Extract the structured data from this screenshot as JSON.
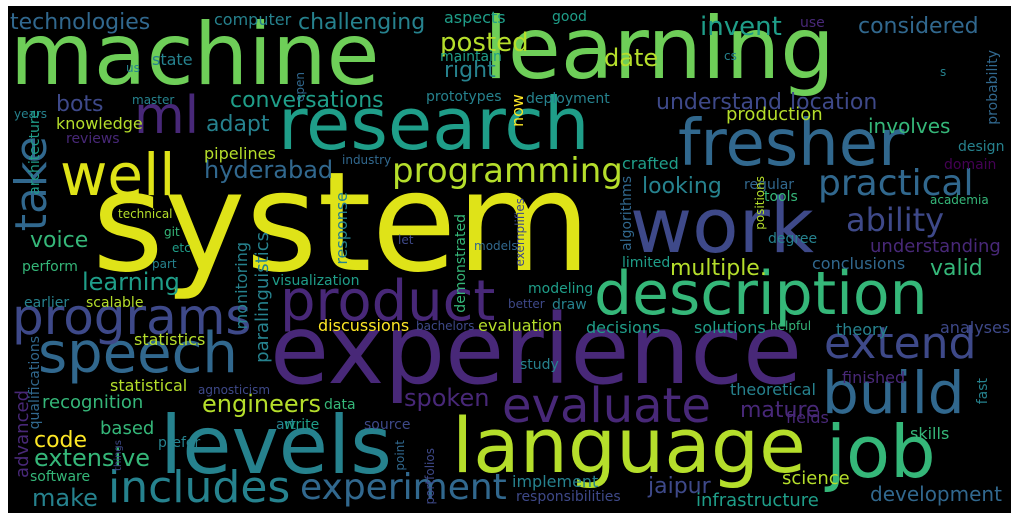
{
  "colors": {
    "background": "#000000",
    "palette": [
      "#fde725",
      "#b5de2b",
      "#6ece58",
      "#35b779",
      "#1f9e89",
      "#26828e",
      "#31688e",
      "#3e4989",
      "#482878",
      "#440154"
    ]
  },
  "words": [
    {
      "text": "system",
      "color": "#dfe318"
    },
    {
      "text": "machine",
      "color": "#6ece58"
    },
    {
      "text": "learning",
      "color": "#6ece58"
    },
    {
      "text": "experience",
      "color": "#482878"
    },
    {
      "text": "research",
      "color": "#1f9e89"
    },
    {
      "text": "work",
      "color": "#3e4989"
    },
    {
      "text": "language",
      "color": "#b5de2b"
    },
    {
      "text": "levels",
      "color": "#26828e"
    },
    {
      "text": "job",
      "color": "#35b779"
    },
    {
      "text": "description",
      "color": "#35b779"
    },
    {
      "text": "fresher",
      "color": "#31688e"
    },
    {
      "text": "product",
      "color": "#482878"
    },
    {
      "text": "speech",
      "color": "#31688e"
    },
    {
      "text": "build",
      "color": "#31688e"
    },
    {
      "text": "evaluate",
      "color": "#482878"
    },
    {
      "text": "programs",
      "color": "#3e4989"
    },
    {
      "text": "includes",
      "color": "#26828e"
    },
    {
      "text": "well",
      "color": "#dfe318"
    },
    {
      "text": "ml",
      "color": "#482878"
    },
    {
      "text": "take",
      "color": "#31688e"
    },
    {
      "text": "extend",
      "color": "#3e4989"
    },
    {
      "text": "experiment",
      "color": "#31688e"
    },
    {
      "text": "practical",
      "color": "#31688e"
    },
    {
      "text": "programming",
      "color": "#b5de2b"
    },
    {
      "text": "ability",
      "color": "#3e4989"
    },
    {
      "text": "conversations",
      "color": "#1f9e89"
    },
    {
      "text": "posted",
      "color": "#b5de2b"
    },
    {
      "text": "date",
      "color": "#b5de2b"
    },
    {
      "text": "invent",
      "color": "#1f9e89"
    },
    {
      "text": "considered",
      "color": "#31688e"
    },
    {
      "text": "challenging",
      "color": "#26828e"
    },
    {
      "text": "technologies",
      "color": "#31688e"
    },
    {
      "text": "understand",
      "color": "#3e4989"
    },
    {
      "text": "location",
      "color": "#3e4989"
    },
    {
      "text": "right",
      "color": "#26828e"
    },
    {
      "text": "hyderabad",
      "color": "#31688e"
    },
    {
      "text": "looking",
      "color": "#26828e"
    },
    {
      "text": "multiple.",
      "color": "#b5de2b"
    },
    {
      "text": "valid",
      "color": "#35b779"
    },
    {
      "text": "voice",
      "color": "#35b779"
    },
    {
      "text": "learning",
      "color": "#1f9e89"
    },
    {
      "text": "engineers",
      "color": "#b5de2b"
    },
    {
      "text": "mature",
      "color": "#482878"
    },
    {
      "text": "spoken",
      "color": "#482878"
    },
    {
      "text": "code",
      "color": "#fde725"
    },
    {
      "text": "extensive",
      "color": "#35b779"
    },
    {
      "text": "make",
      "color": "#26828e"
    },
    {
      "text": "jaipur",
      "color": "#3e4989"
    },
    {
      "text": "development",
      "color": "#31688e"
    },
    {
      "text": "bots",
      "color": "#3e4989"
    },
    {
      "text": "adapt",
      "color": "#26828e"
    },
    {
      "text": "involves",
      "color": "#35b779"
    },
    {
      "text": "production",
      "color": "#b5de2b"
    },
    {
      "text": "recognition",
      "color": "#35b779"
    },
    {
      "text": "based",
      "color": "#35b779"
    },
    {
      "text": "discussions",
      "color": "#fde725"
    },
    {
      "text": "evaluation",
      "color": "#b5de2b"
    },
    {
      "text": "solutions",
      "color": "#1f9e89"
    },
    {
      "text": "decisions",
      "color": "#1f9e89"
    },
    {
      "text": "infrastructure",
      "color": "#1f9e89"
    },
    {
      "text": "responsibilities",
      "color": "#3e4989"
    },
    {
      "text": "science",
      "color": "#b5de2b"
    },
    {
      "text": "understanding",
      "color": "#482878"
    },
    {
      "text": "conclusions",
      "color": "#31688e"
    },
    {
      "text": "analyses",
      "color": "#3e4989"
    },
    {
      "text": "theory",
      "color": "#26828e"
    },
    {
      "text": "finished",
      "color": "#482878"
    },
    {
      "text": "skills",
      "color": "#35b779"
    },
    {
      "text": "theoretical",
      "color": "#26828e"
    },
    {
      "text": "fields",
      "color": "#482878"
    },
    {
      "text": "computer",
      "color": "#26828e"
    },
    {
      "text": "aspects",
      "color": "#1f9e89"
    },
    {
      "text": "good",
      "color": "#1f9e89"
    },
    {
      "text": "state",
      "color": "#26828e"
    },
    {
      "text": "maintain",
      "color": "#1f9e89"
    },
    {
      "text": "prototypes",
      "color": "#26828e"
    },
    {
      "text": "deployment",
      "color": "#26828e"
    },
    {
      "text": "knowledge",
      "color": "#b5de2b"
    },
    {
      "text": "reviews",
      "color": "#482878"
    },
    {
      "text": "pipelines",
      "color": "#b5de2b"
    },
    {
      "text": "crafted",
      "color": "#1f9e89"
    },
    {
      "text": "design",
      "color": "#26828e"
    },
    {
      "text": "domain",
      "color": "#440154"
    },
    {
      "text": "tools",
      "color": "#35b779"
    },
    {
      "text": "regular",
      "color": "#31688e"
    },
    {
      "text": "academia",
      "color": "#35b779"
    },
    {
      "text": "degree",
      "color": "#26828e"
    },
    {
      "text": "technical",
      "color": "#b5de2b"
    },
    {
      "text": "git",
      "color": "#35b779"
    },
    {
      "text": "etc",
      "color": "#1f9e89"
    },
    {
      "text": "part",
      "color": "#26828e"
    },
    {
      "text": "perform",
      "color": "#35b779"
    },
    {
      "text": "visualization",
      "color": "#1f9e89"
    },
    {
      "text": "earlier",
      "color": "#26828e"
    },
    {
      "text": "scalable",
      "color": "#b5de2b"
    },
    {
      "text": "statistics",
      "color": "#b5de2b"
    },
    {
      "text": "statistical",
      "color": "#b5de2b"
    },
    {
      "text": "agnosticism",
      "color": "#3e4989"
    },
    {
      "text": "art",
      "color": "#26828e"
    },
    {
      "text": "write",
      "color": "#1f9e89"
    },
    {
      "text": "data",
      "color": "#35b779"
    },
    {
      "text": "source",
      "color": "#3e4989"
    },
    {
      "text": "prefer",
      "color": "#26828e"
    },
    {
      "text": "software",
      "color": "#35b779"
    },
    {
      "text": "implement",
      "color": "#26828e"
    },
    {
      "text": "study",
      "color": "#26828e"
    },
    {
      "text": "modeling",
      "color": "#1f9e89"
    },
    {
      "text": "draw",
      "color": "#26828e"
    },
    {
      "text": "better",
      "color": "#3e4989"
    },
    {
      "text": "models",
      "color": "#31688e"
    },
    {
      "text": "let",
      "color": "#3e4989"
    },
    {
      "text": "limited",
      "color": "#1f9e89"
    },
    {
      "text": "helpful",
      "color": "#35b779"
    },
    {
      "text": "bachelors",
      "color": "#3e4989"
    },
    {
      "text": "master",
      "color": "#26828e"
    },
    {
      "text": "years",
      "color": "#26828e"
    },
    {
      "text": "industry",
      "color": "#31688e"
    },
    {
      "text": "use",
      "color": "#482878"
    },
    {
      "text": "cs",
      "color": "#26828e"
    },
    {
      "text": "us",
      "color": "#26828e"
    },
    {
      "text": "s",
      "color": "#26828e"
    },
    {
      "text": "open",
      "color": "#31688e"
    },
    {
      "text": "now",
      "color": "#fde725"
    },
    {
      "text": "probability",
      "color": "#31688e"
    },
    {
      "text": "architecture",
      "color": "#1f9e89"
    },
    {
      "text": "advanced",
      "color": "#482878"
    },
    {
      "text": "qualifications",
      "color": "#31688e"
    },
    {
      "text": "paralinguistics",
      "color": "#26828e"
    },
    {
      "text": "monitoring",
      "color": "#26828e"
    },
    {
      "text": "response",
      "color": "#26828e"
    },
    {
      "text": "demonstrated",
      "color": "#35b779"
    },
    {
      "text": "algorithms",
      "color": "#31688e"
    },
    {
      "text": "exemplifies",
      "color": "#3e4989"
    },
    {
      "text": "positions",
      "color": "#b5de2b"
    },
    {
      "text": "portfolios",
      "color": "#3e4989"
    },
    {
      "text": "point",
      "color": "#31688e"
    },
    {
      "text": "fast",
      "color": "#26828e"
    },
    {
      "text": "things",
      "color": "#3e4989"
    }
  ]
}
